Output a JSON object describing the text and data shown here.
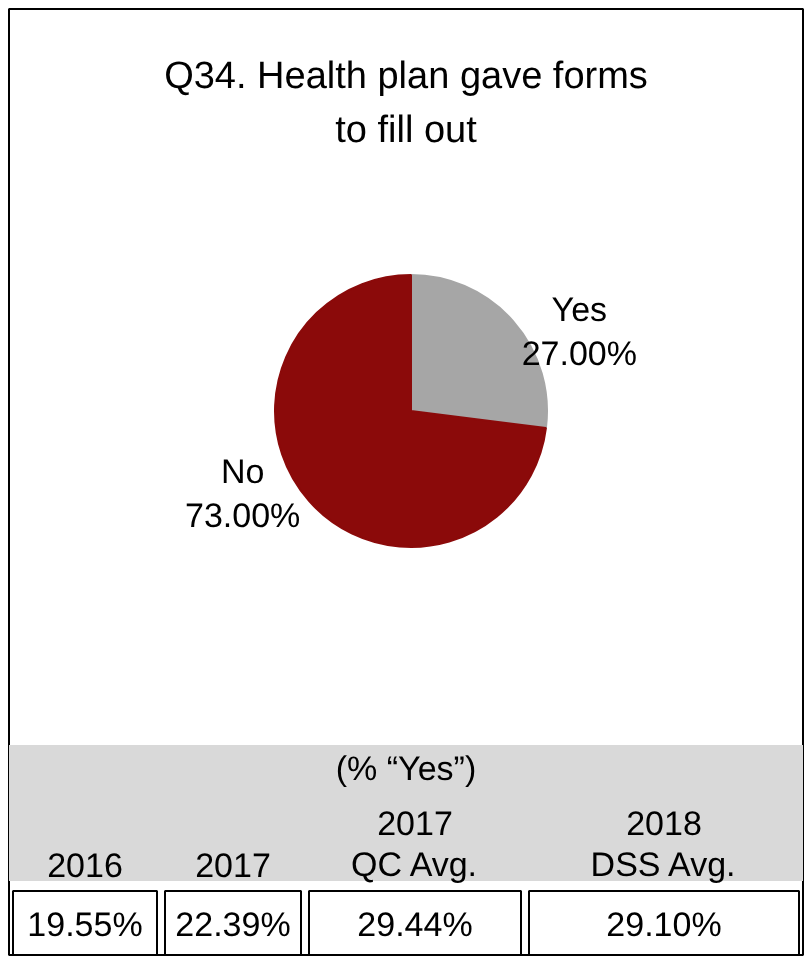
{
  "chart_data": {
    "type": "pie",
    "title": "Q34. Health plan gave forms to fill out",
    "categories": [
      "Yes",
      "No"
    ],
    "values": [
      27,
      73
    ],
    "colors": [
      "#a6a6a6",
      "#8b0a0a"
    ],
    "value_labels": [
      "27.00%",
      "73.00%"
    ],
    "annotations": [
      "(% “Yes”)",
      "2016",
      "2017",
      "2017 QC Avg.",
      "2018 DSS Avg.",
      "19.55%",
      "22.39%",
      "29.44%",
      "29.10%"
    ]
  }
}
